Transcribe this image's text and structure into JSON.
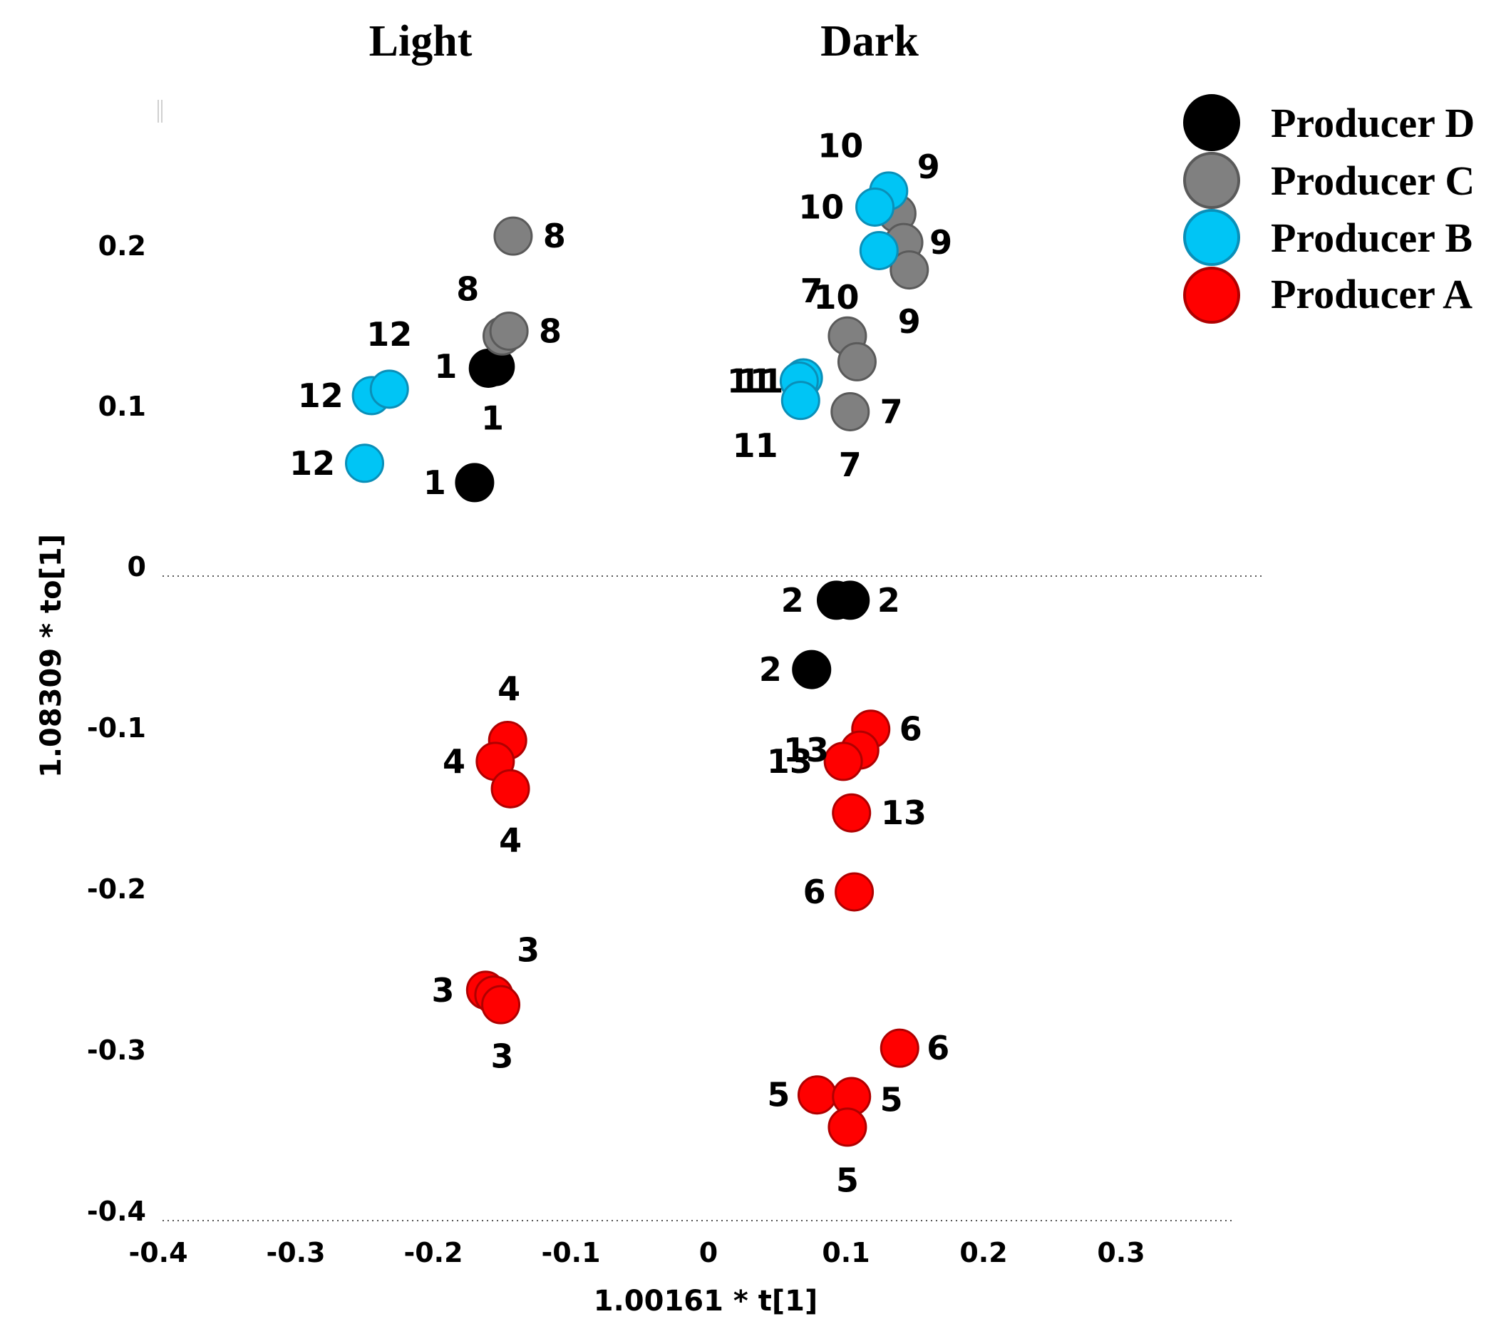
{
  "chart_data": {
    "type": "scatter",
    "section_titles": [
      "Light",
      "Dark"
    ],
    "xlabel": "1.00161 * t[1]",
    "ylabel": "1.08309 * to[1]",
    "xlim": [
      -0.4,
      0.38
    ],
    "ylim": [
      -0.4,
      0.28
    ],
    "x_ticks": [
      "-0.4",
      "-0.3",
      "-0.2",
      "-0.1",
      "0",
      "0.1",
      "0.2",
      "0.3"
    ],
    "x_tick_values": [
      -0.4,
      -0.3,
      -0.2,
      -0.1,
      0,
      0.1,
      0.2,
      0.3
    ],
    "y_ticks": [
      "0.2",
      "0.1",
      "0",
      "-0.1",
      "-0.2",
      "-0.3",
      "-0.4"
    ],
    "y_tick_values": [
      0.2,
      0.1,
      0,
      -0.1,
      -0.2,
      -0.3,
      -0.4
    ],
    "legend": {
      "position": "top-right"
    },
    "series": [
      {
        "name": "Producer D",
        "color": "#000000",
        "stroke": "#000000",
        "points": [
          {
            "x": -0.16,
            "y": 0.129,
            "label": "1"
          },
          {
            "x": -0.155,
            "y": 0.13,
            "label": "1"
          },
          {
            "x": -0.17,
            "y": 0.058,
            "label": "1"
          },
          {
            "x": 0.093,
            "y": -0.015,
            "label": "2"
          },
          {
            "x": 0.103,
            "y": -0.015,
            "label": "2"
          },
          {
            "x": 0.075,
            "y": -0.058,
            "label": "2"
          }
        ]
      },
      {
        "name": "Producer C",
        "color": "#808080",
        "stroke": "#5a5a5a",
        "points": [
          {
            "x": -0.142,
            "y": 0.211,
            "label": "8"
          },
          {
            "x": -0.15,
            "y": 0.149,
            "label": "8"
          },
          {
            "x": -0.145,
            "y": 0.152,
            "label": "8"
          },
          {
            "x": 0.137,
            "y": 0.225,
            "label": "9"
          },
          {
            "x": 0.142,
            "y": 0.207,
            "label": "9"
          },
          {
            "x": 0.146,
            "y": 0.19,
            "label": "9"
          },
          {
            "x": 0.101,
            "y": 0.149,
            "label": "7"
          },
          {
            "x": 0.108,
            "y": 0.133,
            "label": "7"
          },
          {
            "x": 0.103,
            "y": 0.102,
            "label": "7"
          }
        ]
      },
      {
        "name": "Producer B",
        "color": "#00c5f5",
        "stroke": "#0a8fb8",
        "points": [
          {
            "x": -0.245,
            "y": 0.112,
            "label": "12"
          },
          {
            "x": -0.232,
            "y": 0.116,
            "label": "12"
          },
          {
            "x": -0.25,
            "y": 0.07,
            "label": "12"
          },
          {
            "x": 0.131,
            "y": 0.239,
            "label": "10"
          },
          {
            "x": 0.121,
            "y": 0.229,
            "label": "10"
          },
          {
            "x": 0.124,
            "y": 0.202,
            "label": "10"
          },
          {
            "x": 0.069,
            "y": 0.123,
            "label": "11"
          },
          {
            "x": 0.066,
            "y": 0.121,
            "label": "11"
          },
          {
            "x": 0.067,
            "y": 0.109,
            "label": "11"
          }
        ]
      },
      {
        "name": "Producer A",
        "color": "#ff0000",
        "stroke": "#b00000",
        "points": [
          {
            "x": -0.146,
            "y": -0.102,
            "label": "4"
          },
          {
            "x": -0.155,
            "y": -0.115,
            "label": "4"
          },
          {
            "x": -0.144,
            "y": -0.132,
            "label": "4"
          },
          {
            "x": -0.162,
            "y": -0.257,
            "label": "3"
          },
          {
            "x": -0.156,
            "y": -0.26,
            "label": "3"
          },
          {
            "x": -0.151,
            "y": -0.266,
            "label": "3"
          },
          {
            "x": 0.118,
            "y": -0.095,
            "label": "6"
          },
          {
            "x": 0.11,
            "y": -0.108,
            "label": "13"
          },
          {
            "x": 0.098,
            "y": -0.115,
            "label": "13"
          },
          {
            "x": 0.104,
            "y": -0.147,
            "label": "13"
          },
          {
            "x": 0.106,
            "y": -0.196,
            "label": "6"
          },
          {
            "x": 0.139,
            "y": -0.293,
            "label": "6"
          },
          {
            "x": 0.079,
            "y": -0.322,
            "label": "5"
          },
          {
            "x": 0.104,
            "y": -0.323,
            "label": "5"
          },
          {
            "x": 0.101,
            "y": -0.342,
            "label": "5"
          }
        ]
      }
    ],
    "point_labels": [
      {
        "text": "8",
        "x": -0.112,
        "y": 0.211
      },
      {
        "text": "8",
        "x": -0.175,
        "y": 0.178
      },
      {
        "text": "8",
        "x": -0.115,
        "y": 0.152
      },
      {
        "text": "12",
        "x": -0.232,
        "y": 0.15
      },
      {
        "text": "12",
        "x": -0.282,
        "y": 0.112
      },
      {
        "text": "12",
        "x": -0.288,
        "y": 0.07
      },
      {
        "text": "1",
        "x": -0.191,
        "y": 0.13
      },
      {
        "text": "1",
        "x": -0.157,
        "y": 0.098
      },
      {
        "text": "1",
        "x": -0.199,
        "y": 0.058
      },
      {
        "text": "10",
        "x": 0.096,
        "y": 0.267
      },
      {
        "text": "9",
        "x": 0.16,
        "y": 0.254
      },
      {
        "text": "10",
        "x": 0.082,
        "y": 0.229
      },
      {
        "text": "9",
        "x": 0.169,
        "y": 0.207
      },
      {
        "text": "7",
        "x": 0.075,
        "y": 0.177
      },
      {
        "text": "10",
        "x": 0.093,
        "y": 0.173
      },
      {
        "text": "9",
        "x": 0.146,
        "y": 0.158
      },
      {
        "text": "11",
        "x": 0.03,
        "y": 0.121
      },
      {
        "text": "11",
        "x": 0.038,
        "y": 0.121
      },
      {
        "text": "7",
        "x": 0.133,
        "y": 0.102
      },
      {
        "text": "11",
        "x": 0.034,
        "y": 0.081
      },
      {
        "text": "7",
        "x": 0.103,
        "y": 0.069
      },
      {
        "text": "2",
        "x": 0.061,
        "y": -0.015
      },
      {
        "text": "2",
        "x": 0.131,
        "y": -0.015
      },
      {
        "text": "2",
        "x": 0.045,
        "y": -0.058
      },
      {
        "text": "4",
        "x": -0.145,
        "y": -0.07
      },
      {
        "text": "4",
        "x": -0.185,
        "y": -0.115
      },
      {
        "text": "4",
        "x": -0.144,
        "y": -0.164
      },
      {
        "text": "6",
        "x": 0.147,
        "y": -0.095
      },
      {
        "text": "13",
        "x": 0.071,
        "y": -0.108
      },
      {
        "text": "13",
        "x": 0.059,
        "y": -0.115
      },
      {
        "text": "13",
        "x": 0.142,
        "y": -0.147
      },
      {
        "text": "6",
        "x": 0.077,
        "y": -0.196
      },
      {
        "text": "3",
        "x": -0.131,
        "y": -0.232
      },
      {
        "text": "3",
        "x": -0.193,
        "y": -0.257
      },
      {
        "text": "3",
        "x": -0.15,
        "y": -0.298
      },
      {
        "text": "6",
        "x": 0.167,
        "y": -0.293
      },
      {
        "text": "5",
        "x": 0.051,
        "y": -0.322
      },
      {
        "text": "5",
        "x": 0.133,
        "y": -0.325
      },
      {
        "text": "5",
        "x": 0.101,
        "y": -0.375
      }
    ]
  }
}
